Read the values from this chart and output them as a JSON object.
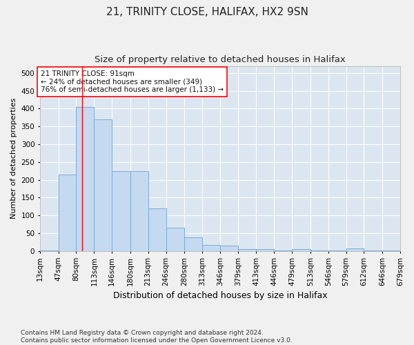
{
  "title1": "21, TRINITY CLOSE, HALIFAX, HX2 9SN",
  "title2": "Size of property relative to detached houses in Halifax",
  "xlabel": "Distribution of detached houses by size in Halifax",
  "ylabel": "Number of detached properties",
  "bar_color": "#c5d9f0",
  "bar_edge_color": "#7aadda",
  "background_color": "#dce6f1",
  "grid_color": "#ffffff",
  "annotation_text": "21 TRINITY CLOSE: 91sqm\n← 24% of detached houses are smaller (349)\n76% of semi-detached houses are larger (1,133) →",
  "vline_x": 91,
  "bin_edges": [
    13,
    47,
    80,
    113,
    146,
    180,
    213,
    246,
    280,
    313,
    346,
    379,
    413,
    446,
    479,
    513,
    546,
    579,
    612,
    646,
    679
  ],
  "bar_heights": [
    2,
    215,
    405,
    370,
    225,
    225,
    120,
    65,
    38,
    17,
    15,
    5,
    5,
    2,
    5,
    2,
    2,
    7,
    2,
    2
  ],
  "ylim": [
    0,
    520
  ],
  "yticks": [
    0,
    50,
    100,
    150,
    200,
    250,
    300,
    350,
    400,
    450,
    500
  ],
  "footnote": "Contains HM Land Registry data © Crown copyright and database right 2024.\nContains public sector information licensed under the Open Government Licence v3.0.",
  "title1_fontsize": 11,
  "title2_fontsize": 9.5,
  "xlabel_fontsize": 9,
  "ylabel_fontsize": 8,
  "tick_fontsize": 7.5,
  "annot_fontsize": 7.5,
  "footnote_fontsize": 6.5,
  "fig_facecolor": "#f0f0f0"
}
